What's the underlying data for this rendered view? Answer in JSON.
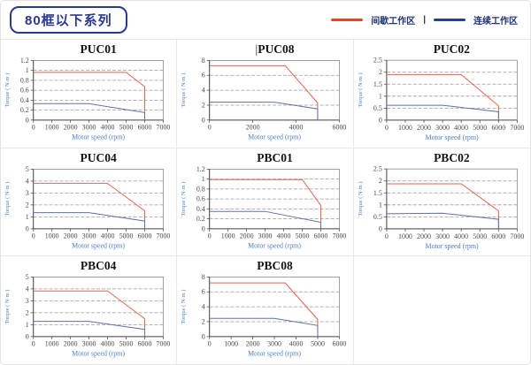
{
  "header": {
    "title": "80框以下系列",
    "legend": {
      "intermittent_label": "间歇工作区",
      "separator": "|",
      "continuous_label": "连续工作区",
      "intermittent_color": "#e8432a",
      "continuous_color": "#26418f"
    }
  },
  "colors": {
    "intermittent_line": "#e8604e",
    "continuous_line": "#5d73a5",
    "grid_dash": "#9b9b9b",
    "frame": "#8a8a8a",
    "axis": "#4d4d4d"
  },
  "chart_data": [
    {
      "type": "line",
      "title": "PUC01",
      "title_prefix": "",
      "xlabel": "Motor speed (rpm)",
      "ylabel": "Torque ( N·m )",
      "xlim": [
        0,
        7000
      ],
      "ylim": [
        0,
        1.2
      ],
      "x_tick_labels": [
        0,
        1000,
        2000,
        3000,
        4000,
        5000,
        6000,
        7000
      ],
      "y_tick_labels": [
        0,
        0.2,
        0.4,
        0.6,
        0.8,
        1,
        1.2
      ],
      "grid": "dashed-horizontal",
      "series": [
        {
          "key": "intermittent",
          "name": "间歇工作区",
          "color": "#e8604e",
          "points": [
            [
              0,
              0.96
            ],
            [
              5000,
              0.96
            ],
            [
              6000,
              0.67
            ],
            [
              6000,
              0
            ]
          ]
        },
        {
          "key": "continuous",
          "name": "连续工作区",
          "color": "#5d73a5",
          "points": [
            [
              0,
              0.33
            ],
            [
              3000,
              0.33
            ],
            [
              6000,
              0.15
            ],
            [
              6000,
              0
            ]
          ]
        }
      ]
    },
    {
      "type": "line",
      "title": "PUC08",
      "title_prefix": "|",
      "xlabel": "Motor speed (rpm)",
      "ylabel": "Torque ( N·m )",
      "xlim": [
        0,
        6000
      ],
      "ylim": [
        0,
        8
      ],
      "x_tick_labels": [
        0,
        2000,
        4000,
        6000
      ],
      "y_tick_labels": [
        0,
        2,
        4,
        6,
        8
      ],
      "grid": "dashed-horizontal",
      "series": [
        {
          "key": "intermittent",
          "name": "间歇工作区",
          "color": "#e8604e",
          "points": [
            [
              0,
              7.3
            ],
            [
              3500,
              7.3
            ],
            [
              5000,
              2.3
            ],
            [
              5000,
              0
            ]
          ]
        },
        {
          "key": "continuous",
          "name": "连续工作区",
          "color": "#5d73a5",
          "points": [
            [
              0,
              2.4
            ],
            [
              3000,
              2.4
            ],
            [
              5000,
              1.5
            ],
            [
              5000,
              0
            ]
          ]
        }
      ]
    },
    {
      "type": "line",
      "title": "PUC02",
      "title_prefix": "",
      "xlabel": "Motor speed (rpm)",
      "ylabel": "Torque ( N·m )",
      "xlim": [
        0,
        7000
      ],
      "ylim": [
        0,
        2.5
      ],
      "x_tick_labels": [
        0,
        1000,
        2000,
        3000,
        4000,
        5000,
        6000,
        7000
      ],
      "y_tick_labels": [
        0,
        0.5,
        1,
        1.5,
        2,
        2.5
      ],
      "grid": "dashed-horizontal",
      "series": [
        {
          "key": "intermittent",
          "name": "间歇工作区",
          "color": "#e8604e",
          "points": [
            [
              0,
              1.9
            ],
            [
              4000,
              1.9
            ],
            [
              6000,
              0.6
            ],
            [
              6000,
              0
            ]
          ]
        },
        {
          "key": "continuous",
          "name": "连续工作区",
          "color": "#5d73a5",
          "points": [
            [
              0,
              0.62
            ],
            [
              3000,
              0.62
            ],
            [
              6000,
              0.35
            ],
            [
              6000,
              0
            ]
          ]
        }
      ]
    },
    {
      "type": "line",
      "title": "PUC04",
      "title_prefix": "",
      "xlabel": "Motor speed (rpm)",
      "ylabel": "Torque ( N·m )",
      "xlim": [
        0,
        7000
      ],
      "ylim": [
        0,
        5
      ],
      "x_tick_labels": [
        0,
        1000,
        2000,
        3000,
        4000,
        5000,
        6000,
        7000
      ],
      "y_tick_labels": [
        0,
        1,
        2,
        3,
        4,
        5
      ],
      "grid": "dashed-horizontal",
      "series": [
        {
          "key": "intermittent",
          "name": "间歇工作区",
          "color": "#e8604e",
          "points": [
            [
              0,
              3.8
            ],
            [
              4000,
              3.8
            ],
            [
              6000,
              1.5
            ],
            [
              6000,
              0
            ]
          ]
        },
        {
          "key": "continuous",
          "name": "连续工作区",
          "color": "#5d73a5",
          "points": [
            [
              0,
              1.35
            ],
            [
              3000,
              1.35
            ],
            [
              6000,
              0.65
            ],
            [
              6000,
              0
            ]
          ]
        }
      ]
    },
    {
      "type": "line",
      "title": "PBC01",
      "title_prefix": "",
      "xlabel": "Motor speed (rpm)",
      "ylabel": "Torque ( N·m )",
      "xlim": [
        0,
        7000
      ],
      "ylim": [
        0,
        1.2
      ],
      "x_tick_labels": [
        0,
        1000,
        2000,
        3000,
        4000,
        5000,
        6000,
        7000
      ],
      "y_tick_labels": [
        0,
        0.2,
        0.4,
        0.6,
        0.8,
        1,
        1.2
      ],
      "grid": "dashed-horizontal",
      "series": [
        {
          "key": "intermittent",
          "name": "间歇工作区",
          "color": "#e8604e",
          "points": [
            [
              0,
              0.99
            ],
            [
              5000,
              0.99
            ],
            [
              6000,
              0.47
            ],
            [
              6000,
              0
            ]
          ]
        },
        {
          "key": "continuous",
          "name": "连续工作区",
          "color": "#5d73a5",
          "points": [
            [
              0,
              0.35
            ],
            [
              3000,
              0.35
            ],
            [
              6000,
              0.13
            ],
            [
              6000,
              0
            ]
          ]
        }
      ]
    },
    {
      "type": "line",
      "title": "PBC02",
      "title_prefix": "",
      "xlabel": "Motor speed (rpm)",
      "ylabel": "Torque ( N·m )",
      "xlim": [
        0,
        7000
      ],
      "ylim": [
        0,
        2.5
      ],
      "x_tick_labels": [
        0,
        1000,
        2000,
        3000,
        4000,
        5000,
        6000,
        7000
      ],
      "y_tick_labels": [
        0,
        0.5,
        1,
        1.5,
        2,
        2.5
      ],
      "grid": "dashed-horizontal",
      "series": [
        {
          "key": "intermittent",
          "name": "间歇工作区",
          "color": "#e8604e",
          "points": [
            [
              0,
              1.88
            ],
            [
              4000,
              1.88
            ],
            [
              6000,
              0.75
            ],
            [
              6000,
              0
            ]
          ]
        },
        {
          "key": "continuous",
          "name": "连续工作区",
          "color": "#5d73a5",
          "points": [
            [
              0,
              0.63
            ],
            [
              3000,
              0.65
            ],
            [
              6000,
              0.4
            ],
            [
              6000,
              0
            ]
          ]
        }
      ]
    },
    {
      "type": "line",
      "title": "PBC04",
      "title_prefix": "",
      "xlabel": "Motor speed (rpm)",
      "ylabel": "Torque ( N·m )",
      "xlim": [
        0,
        7000
      ],
      "ylim": [
        0,
        5
      ],
      "x_tick_labels": [
        0,
        1000,
        2000,
        3000,
        4000,
        5000,
        6000,
        7000
      ],
      "y_tick_labels": [
        0,
        1,
        2,
        3,
        4,
        5
      ],
      "grid": "dashed-horizontal",
      "series": [
        {
          "key": "intermittent",
          "name": "间歇工作区",
          "color": "#e8604e",
          "points": [
            [
              0,
              3.82
            ],
            [
              4000,
              3.82
            ],
            [
              6000,
              1.5
            ],
            [
              6000,
              0
            ]
          ]
        },
        {
          "key": "continuous",
          "name": "连续工作区",
          "color": "#5d73a5",
          "points": [
            [
              0,
              1.27
            ],
            [
              3000,
              1.27
            ],
            [
              6000,
              0.6
            ],
            [
              6000,
              0
            ]
          ]
        }
      ]
    },
    {
      "type": "line",
      "title": "PBC08",
      "title_prefix": "",
      "xlabel": "Motor speed (rpm)",
      "ylabel": "Torque ( N·m )",
      "xlim": [
        0,
        6000
      ],
      "ylim": [
        0,
        8
      ],
      "x_tick_labels": [
        0,
        1000,
        2000,
        3000,
        4000,
        5000,
        6000
      ],
      "y_tick_labels": [
        0,
        2,
        4,
        6,
        8
      ],
      "grid": "dashed-horizontal",
      "series": [
        {
          "key": "intermittent",
          "name": "间歇工作区",
          "color": "#e8604e",
          "points": [
            [
              0,
              7.2
            ],
            [
              3500,
              7.2
            ],
            [
              5000,
              2.3
            ],
            [
              5000,
              0
            ]
          ]
        },
        {
          "key": "continuous",
          "name": "连续工作区",
          "color": "#5d73a5",
          "points": [
            [
              0,
              2.45
            ],
            [
              3000,
              2.45
            ],
            [
              5000,
              1.5
            ],
            [
              5000,
              0
            ]
          ]
        }
      ]
    }
  ]
}
